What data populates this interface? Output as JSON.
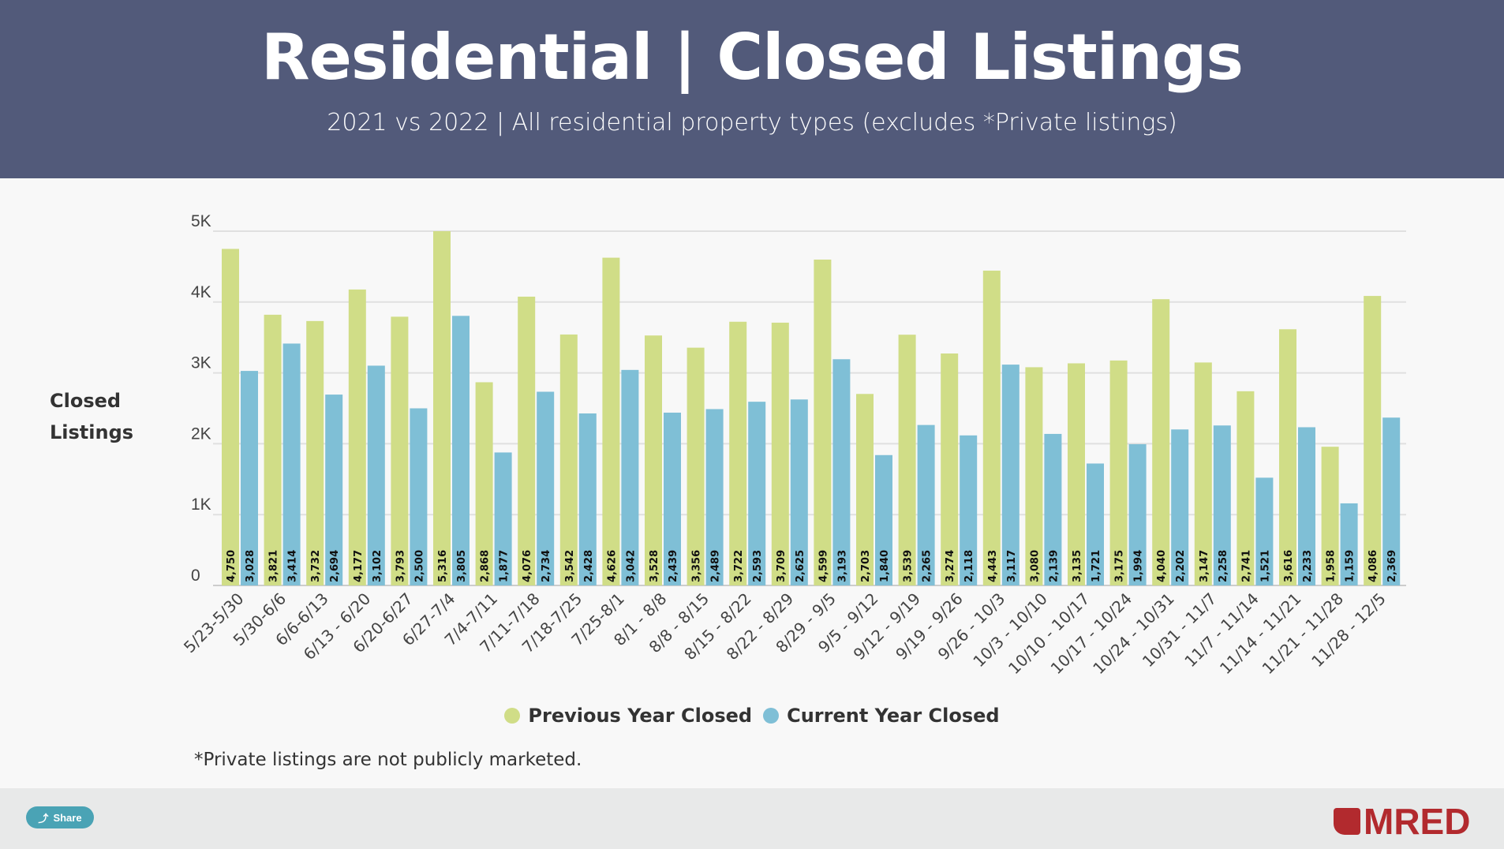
{
  "header": {
    "title": "Residential | Closed Listings",
    "subtitle": "2021 vs 2022 | All residential property types (excludes *Private listings)"
  },
  "footnote": "*Private listings are not publicly marketed.",
  "share_label": "Share",
  "logo_text": "MRED",
  "colors": {
    "previous": "#d0dd87",
    "current": "#7fbfd6",
    "header": "#525a7a",
    "brand": "#b22a2e"
  },
  "chart_data": {
    "type": "bar",
    "title": "Residential | Closed Listings",
    "ylabel": "Closed Listings",
    "ylabel_lines": [
      "Closed",
      "Listings"
    ],
    "xlabel": "",
    "ylim": [
      0,
      5000
    ],
    "yticks": [
      0,
      1000,
      2000,
      3000,
      4000,
      5000
    ],
    "ytick_labels": [
      "0",
      "1K",
      "2K",
      "3K",
      "4K",
      "5K"
    ],
    "grid": true,
    "legend_position": "bottom",
    "categories": [
      "5/23-5/30",
      "5/30-6/6",
      "6/6-6/13",
      "6/13 - 6/20",
      "6/20-6/27",
      "6/27-7/4",
      "7/4-7/11",
      "7/11-7/18",
      "7/18-7/25",
      "7/25-8/1",
      "8/1 - 8/8",
      "8/8 - 8/15",
      "8/15 - 8/22",
      "8/22 - 8/29",
      "8/29 - 9/5",
      "9/5 - 9/12",
      "9/12 - 9/19",
      "9/19 - 9/26",
      "9/26 - 10/3",
      "10/3 - 10/10",
      "10/10 - 10/17",
      "10/17 - 10/24",
      "10/24 - 10/31",
      "10/31 - 11/7",
      "11/7 - 11/14",
      "11/14 - 11/21",
      "11/21 - 11/28",
      "11/28 - 12/5"
    ],
    "series": [
      {
        "name": "Previous Year Closed",
        "values": [
          4750,
          3821,
          3732,
          4177,
          3793,
          5316,
          2868,
          4076,
          3542,
          4626,
          3528,
          3356,
          3722,
          3709,
          4599,
          2703,
          3539,
          3274,
          4443,
          3080,
          3135,
          3175,
          4040,
          3147,
          2741,
          3616,
          1958,
          4086
        ]
      },
      {
        "name": "Current Year Closed",
        "values": [
          3028,
          3414,
          2694,
          3102,
          2500,
          3805,
          1877,
          2734,
          2428,
          3042,
          2439,
          2489,
          2593,
          2625,
          3193,
          1840,
          2265,
          2118,
          3117,
          2139,
          1721,
          1994,
          2202,
          2258,
          1521,
          2233,
          1159,
          2369
        ]
      }
    ]
  }
}
